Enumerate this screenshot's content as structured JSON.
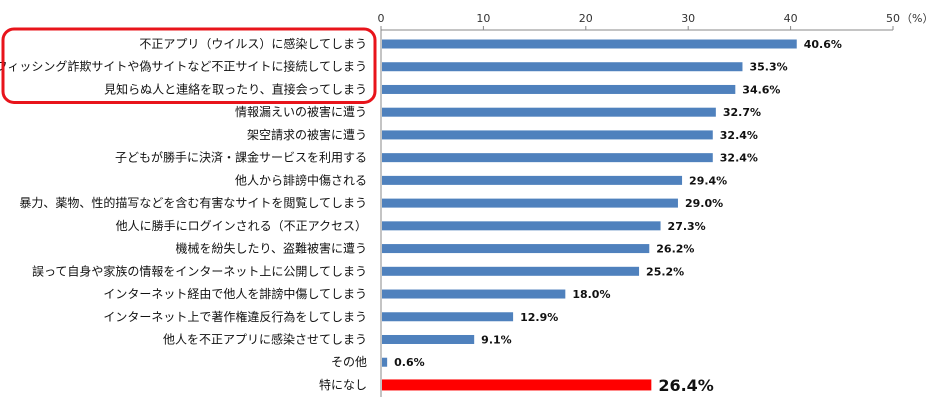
{
  "chart_data": {
    "type": "bar",
    "orientation": "horizontal",
    "unit": "（%）",
    "xlim": [
      0,
      50
    ],
    "ticks": [
      0,
      10,
      20,
      30,
      40,
      50
    ],
    "grid": false,
    "categories": [
      "不正アプリ（ウイルス）に感染してしまう",
      "フィッシング詐欺サイトや偽サイトなど不正サイトに接続してしまう",
      "見知らぬ人と連絡を取ったり、直接会ってしまう",
      "情報漏えいの被害に遭う",
      "架空請求の被害に遭う",
      "子どもが勝手に決済・課金サービスを利用する",
      "他人から誹謗中傷される",
      "暴力、薬物、性的描写などを含む有害なサイトを閲覧してしまう",
      "他人に勝手にログインされる（不正アクセス）",
      "機械を紛失したり、盗難被害に遭う",
      "誤って自身や家族の情報をインターネット上に公開してしまう",
      "インターネット経由で他人を誹謗中傷してしまう",
      "インターネット上で著作権違反行為をしてしまう",
      "他人を不正アプリに感染させてしまう",
      "その他",
      "特になし"
    ],
    "values": [
      40.6,
      35.3,
      34.6,
      32.7,
      32.4,
      32.4,
      29.4,
      29.0,
      27.3,
      26.2,
      25.2,
      18.0,
      12.9,
      9.1,
      0.6,
      26.4
    ],
    "value_labels": [
      "40.6%",
      "35.3%",
      "34.6%",
      "32.7%",
      "32.4%",
      "32.4%",
      "29.4%",
      "29.0%",
      "27.3%",
      "26.2%",
      "25.2%",
      "18.0%",
      "12.9%",
      "9.1%",
      "0.6%",
      "26.4%"
    ],
    "highlighted_categories": [
      0,
      1,
      2
    ],
    "emphasized_category": 15,
    "colors": {
      "bar": "#4f81bd",
      "bar_emphasized": "#ff0000",
      "highlight_box": "#e8141b",
      "axis": "#888888"
    }
  }
}
